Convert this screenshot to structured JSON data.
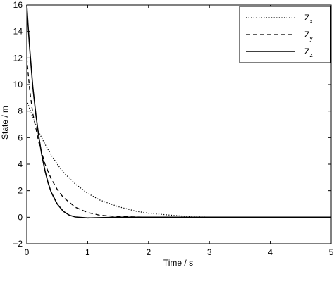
{
  "chart_data": {
    "type": "line",
    "title": "",
    "xlabel": "Time / s",
    "ylabel": "State / m",
    "xlim": [
      0,
      5
    ],
    "ylim": [
      -2,
      16
    ],
    "xticks": [
      0,
      1,
      2,
      3,
      4,
      5
    ],
    "yticks": [
      -2,
      0,
      2,
      4,
      6,
      8,
      10,
      12,
      14,
      16
    ],
    "grid": false,
    "legend_position": "top-right",
    "series": [
      {
        "name": "Z",
        "subscript": "x",
        "style": "dotted",
        "color": "#000000",
        "x": [
          0,
          0.1,
          0.2,
          0.3,
          0.4,
          0.5,
          0.6,
          0.8,
          1.0,
          1.2,
          1.5,
          1.8,
          2.0,
          2.5,
          3.0,
          3.5,
          4.0,
          4.5,
          5.0
        ],
        "y": [
          8.8,
          7.5,
          6.4,
          5.5,
          4.7,
          4.0,
          3.4,
          2.5,
          1.8,
          1.3,
          0.8,
          0.45,
          0.3,
          0.1,
          0.0,
          -0.05,
          -0.05,
          -0.05,
          -0.05
        ]
      },
      {
        "name": "Z",
        "subscript": "y",
        "style": "dashed",
        "color": "#000000",
        "x": [
          0,
          0.05,
          0.1,
          0.2,
          0.3,
          0.4,
          0.5,
          0.6,
          0.8,
          1.0,
          1.2,
          1.5,
          2.0,
          3.0,
          4.0,
          5.0
        ],
        "y": [
          12.0,
          9.5,
          7.8,
          5.6,
          4.0,
          2.9,
          2.1,
          1.5,
          0.75,
          0.35,
          0.15,
          0.05,
          0.0,
          0.0,
          0.0,
          0.0
        ]
      },
      {
        "name": "Z",
        "subscript": "z",
        "style": "solid",
        "color": "#000000",
        "x": [
          0,
          0.025,
          0.05,
          0.1,
          0.15,
          0.2,
          0.25,
          0.3,
          0.35,
          0.4,
          0.5,
          0.6,
          0.7,
          0.8,
          1.0,
          1.5,
          2.0,
          3.0,
          4.0,
          5.0
        ],
        "y": [
          16.0,
          14.2,
          12.6,
          9.8,
          7.7,
          6.0,
          4.6,
          3.5,
          2.6,
          1.9,
          1.0,
          0.45,
          0.15,
          0.02,
          -0.05,
          0.0,
          0.0,
          0.0,
          0.0,
          0.0
        ]
      }
    ]
  }
}
